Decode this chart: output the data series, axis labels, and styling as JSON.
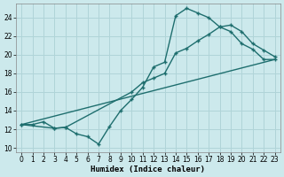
{
  "xlabel": "Humidex (Indice chaleur)",
  "bg_color": "#cce9ec",
  "grid_color": "#b0d4d8",
  "line_color": "#1e6e6e",
  "xlim": [
    -0.5,
    23.5
  ],
  "ylim": [
    9.5,
    25.5
  ],
  "xticks": [
    0,
    1,
    2,
    3,
    4,
    5,
    6,
    7,
    8,
    9,
    10,
    11,
    12,
    13,
    14,
    15,
    16,
    17,
    18,
    19,
    20,
    21,
    22,
    23
  ],
  "yticks": [
    10,
    12,
    14,
    16,
    18,
    20,
    22,
    24
  ],
  "series": [
    {
      "x": [
        0,
        1,
        2,
        3,
        4,
        5,
        6,
        7,
        8,
        9,
        10,
        11,
        12,
        13,
        14,
        15,
        16,
        17,
        18,
        19,
        20,
        21,
        22,
        23
      ],
      "y": [
        12.5,
        12.5,
        12.8,
        12.1,
        12.2,
        11.5,
        11.2,
        10.4,
        12.3,
        14.0,
        15.2,
        16.5,
        18.7,
        19.2,
        24.2,
        25.0,
        24.5,
        24.0,
        23.0,
        22.5,
        21.2,
        20.6,
        19.5,
        19.5
      ],
      "linestyle": "-",
      "marker": "+"
    },
    {
      "x": [
        0,
        3,
        4,
        10,
        11,
        12,
        13,
        14,
        15,
        16,
        17,
        18,
        19,
        20,
        21,
        22,
        23
      ],
      "y": [
        12.5,
        12.1,
        12.2,
        16.0,
        17.0,
        17.5,
        18.0,
        20.2,
        20.7,
        21.5,
        22.2,
        23.0,
        23.2,
        22.5,
        21.2,
        20.5,
        19.8
      ],
      "linestyle": "-",
      "marker": "+"
    },
    {
      "x": [
        0,
        23
      ],
      "y": [
        12.5,
        19.5
      ],
      "linestyle": "-",
      "marker": ""
    }
  ]
}
